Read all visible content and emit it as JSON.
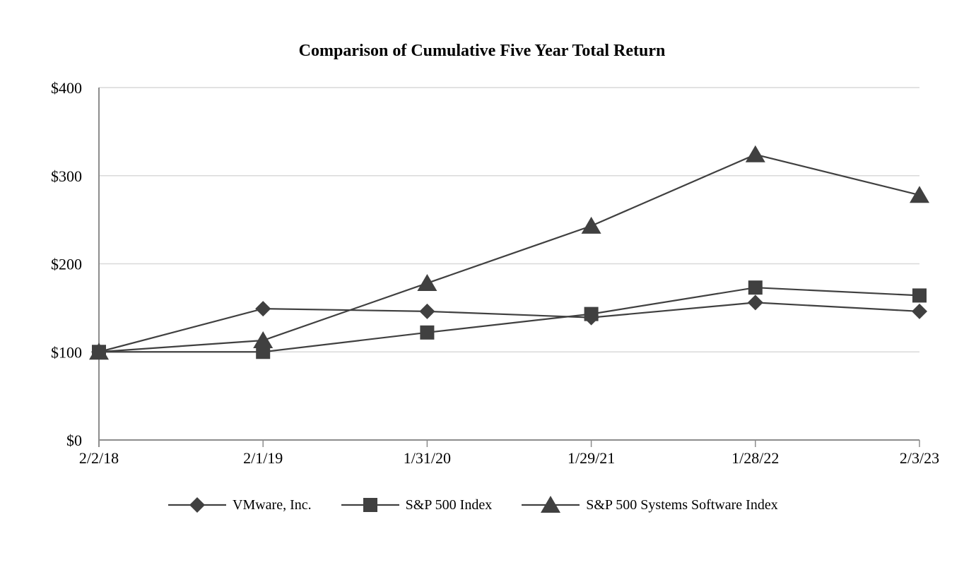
{
  "chart_data": {
    "type": "line",
    "title": "Comparison of Cumulative Five Year Total Return",
    "categories": [
      "2/2/18",
      "2/1/19",
      "1/31/20",
      "1/29/21",
      "1/28/22",
      "2/3/23"
    ],
    "xlabel": "",
    "ylabel": "",
    "y_axis": {
      "tick_labels": [
        "$0",
        "$100",
        "$200",
        "$300",
        "$400"
      ],
      "tick_values": [
        0,
        100,
        200,
        300,
        400
      ],
      "ylim": [
        0,
        400
      ]
    },
    "series": [
      {
        "name": "VMware, Inc.",
        "marker": "diamond",
        "values": [
          100,
          149,
          146,
          139,
          156,
          146
        ]
      },
      {
        "name": "S&P 500 Index",
        "marker": "square",
        "values": [
          100,
          100,
          122,
          143,
          173,
          164
        ]
      },
      {
        "name": "S&P 500 Systems Software Index",
        "marker": "triangle",
        "values": [
          100,
          113,
          178,
          243,
          324,
          278
        ]
      }
    ],
    "colors": {
      "series": "#404040",
      "gridline": "#d9d9d9",
      "axis": "#8c8c8c",
      "text": "#000000",
      "background": "#ffffff"
    },
    "grid": "horizontal",
    "legend_position": "bottom"
  }
}
